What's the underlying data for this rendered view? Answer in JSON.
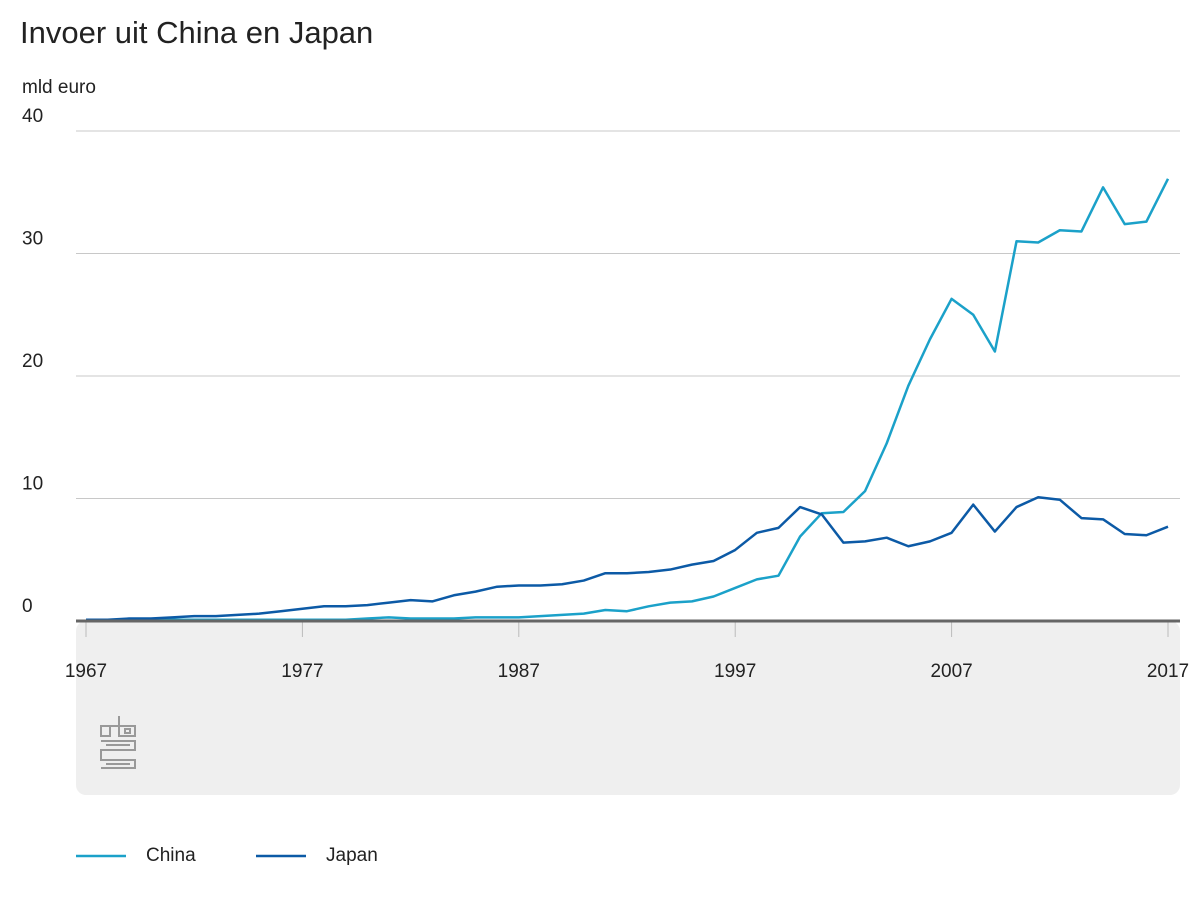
{
  "chart_data": {
    "type": "line",
    "title": "Invoer uit China en Japan",
    "y_label": "mld euro",
    "x": [
      1967,
      1968,
      1969,
      1970,
      1971,
      1972,
      1973,
      1974,
      1975,
      1976,
      1977,
      1978,
      1979,
      1980,
      1981,
      1982,
      1983,
      1984,
      1985,
      1986,
      1987,
      1988,
      1989,
      1990,
      1991,
      1992,
      1993,
      1994,
      1995,
      1996,
      1997,
      1998,
      1999,
      2000,
      2001,
      2002,
      2003,
      2004,
      2005,
      2006,
      2007,
      2008,
      2009,
      2010,
      2011,
      2012,
      2013,
      2014,
      2015,
      2016,
      2017
    ],
    "series": [
      {
        "name": "China",
        "color": "#1ba1c9",
        "values": [
          0.1,
          0.1,
          0.1,
          0.1,
          0.1,
          0.1,
          0.1,
          0.1,
          0.1,
          0.1,
          0.1,
          0.1,
          0.1,
          0.2,
          0.3,
          0.2,
          0.2,
          0.2,
          0.3,
          0.3,
          0.3,
          0.4,
          0.5,
          0.6,
          0.9,
          0.8,
          1.2,
          1.5,
          1.6,
          2.0,
          2.7,
          3.4,
          3.7,
          6.9,
          8.8,
          8.9,
          10.6,
          14.5,
          19.2,
          23.0,
          26.3,
          25.0,
          22.0,
          31.0,
          30.9,
          31.9,
          31.8,
          35.4,
          32.4,
          32.6,
          36.1
        ]
      },
      {
        "name": "Japan",
        "color": "#0c5aa6",
        "values": [
          0.1,
          0.1,
          0.2,
          0.2,
          0.3,
          0.4,
          0.4,
          0.5,
          0.6,
          0.8,
          1.0,
          1.2,
          1.2,
          1.3,
          1.5,
          1.7,
          1.6,
          2.1,
          2.4,
          2.8,
          2.9,
          2.9,
          3.0,
          3.3,
          3.9,
          3.9,
          4.0,
          4.2,
          4.6,
          4.9,
          5.8,
          7.2,
          7.6,
          9.3,
          8.7,
          6.4,
          6.5,
          6.8,
          6.1,
          6.5,
          7.2,
          9.5,
          7.3,
          9.3,
          10.1,
          9.9,
          8.4,
          8.3,
          7.1,
          7.0,
          7.7
        ]
      }
    ],
    "xlim": [
      1967,
      2017
    ],
    "xticks": [
      1967,
      1977,
      1987,
      1997,
      2007,
      2017
    ],
    "ylim": [
      0,
      40
    ],
    "yticks": [
      0,
      10,
      20,
      30,
      40
    ],
    "grid": true,
    "legend": "bottom-left"
  }
}
